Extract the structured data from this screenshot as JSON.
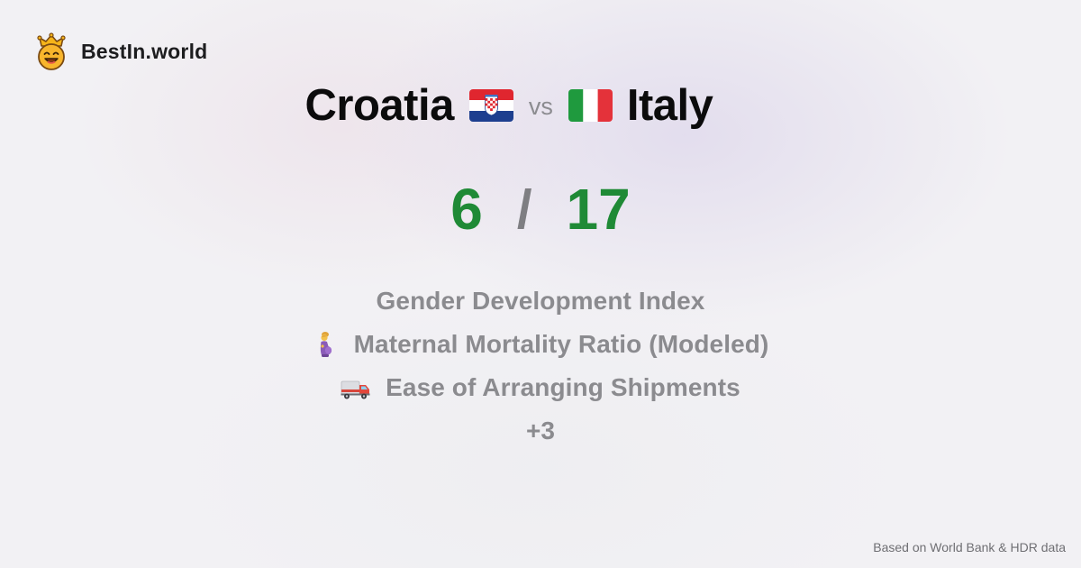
{
  "brand": {
    "name": "BestIn.world",
    "logo_icon": "crowned-smiley-icon"
  },
  "comparison": {
    "left_country": "Croatia",
    "left_flag_icon": "croatia-flag-icon",
    "vs_label": "vs",
    "right_country": "Italy",
    "right_flag_icon": "italy-flag-icon"
  },
  "score": {
    "left": "6",
    "separator": "/",
    "right": "17"
  },
  "metrics": [
    {
      "label": "Gender Development Index",
      "icon": ""
    },
    {
      "label": "Maternal Mortality Ratio (Modeled)",
      "icon": "pregnant-woman-icon"
    },
    {
      "label": "Ease of Arranging Shipments",
      "icon": "delivery-truck-icon"
    }
  ],
  "more_label": "+3",
  "footer": {
    "source": "Based on World Bank & HDR data"
  },
  "colors": {
    "score_green": "#1f8a36",
    "muted_gray": "#8b8b8f",
    "title_black": "#0b0b0c"
  }
}
